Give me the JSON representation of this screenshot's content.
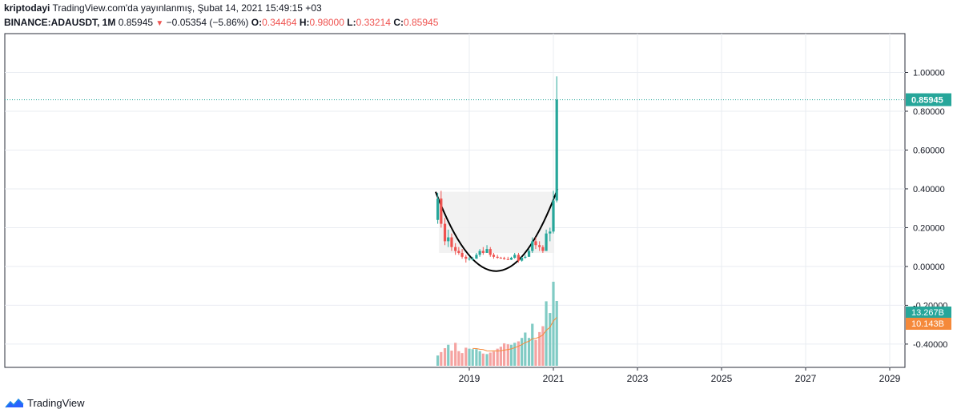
{
  "header": {
    "author": "kriptodayi",
    "published": "TradingView.com'da yayınlanmış, Şubat 14, 2021 15:49:15 +03",
    "symbol": "BINANCE:ADAUSDT, 1M",
    "last": "0.85945",
    "change": "−0.05354 (−5.86%)",
    "o_label": "O:",
    "o_value": "0.34464",
    "h_label": "H:",
    "h_value": "0.98000",
    "l_label": "L:",
    "l_value": "0.33214",
    "c_label": "C:",
    "c_value": "0.85945"
  },
  "footer": {
    "brand": "TradingView",
    "logo_icon": "tradingview-logo-icon"
  },
  "colors": {
    "up": "#26a69a",
    "down": "#ef5350",
    "price_line": "#26a69a",
    "volume_badge": "#26a69a",
    "vol_ma_badge": "#f5893a",
    "curve": "#000000"
  },
  "chart_data": {
    "type": "candlestick",
    "price_axis_labels": [
      "1.00000",
      "0.80000",
      "0.60000",
      "0.40000",
      "0.20000",
      "0.00000",
      "-0.20000",
      "-0.40000"
    ],
    "price_axis_values": [
      1.0,
      0.8,
      0.6,
      0.4,
      0.2,
      0.0,
      -0.2,
      -0.4
    ],
    "ylim": [
      -0.52,
      1.2
    ],
    "time_axis_labels": [
      "2019",
      "2021",
      "2023",
      "2025",
      "2027",
      "2029"
    ],
    "last_price_label": "0.85945",
    "volume_label": "13.267B",
    "volume_ma_label": "10.143B",
    "candles": [
      {
        "t": 2018.25,
        "o": 0.24,
        "h": 0.38,
        "l": 0.22,
        "c": 0.35
      },
      {
        "t": 2018.33,
        "o": 0.35,
        "h": 0.39,
        "l": 0.2,
        "c": 0.22
      },
      {
        "t": 2018.42,
        "o": 0.22,
        "h": 0.25,
        "l": 0.11,
        "c": 0.13
      },
      {
        "t": 2018.5,
        "o": 0.13,
        "h": 0.19,
        "l": 0.1,
        "c": 0.15
      },
      {
        "t": 2018.58,
        "o": 0.15,
        "h": 0.17,
        "l": 0.08,
        "c": 0.1
      },
      {
        "t": 2018.67,
        "o": 0.1,
        "h": 0.12,
        "l": 0.06,
        "c": 0.08
      },
      {
        "t": 2018.75,
        "o": 0.08,
        "h": 0.1,
        "l": 0.06,
        "c": 0.07
      },
      {
        "t": 2018.83,
        "o": 0.07,
        "h": 0.09,
        "l": 0.04,
        "c": 0.05
      },
      {
        "t": 2018.92,
        "o": 0.05,
        "h": 0.06,
        "l": 0.02,
        "c": 0.04
      },
      {
        "t": 2019.0,
        "o": 0.04,
        "h": 0.05,
        "l": 0.03,
        "c": 0.04
      },
      {
        "t": 2019.08,
        "o": 0.04,
        "h": 0.05,
        "l": 0.03,
        "c": 0.04
      },
      {
        "t": 2019.17,
        "o": 0.04,
        "h": 0.07,
        "l": 0.04,
        "c": 0.06
      },
      {
        "t": 2019.25,
        "o": 0.06,
        "h": 0.09,
        "l": 0.05,
        "c": 0.08
      },
      {
        "t": 2019.33,
        "o": 0.08,
        "h": 0.1,
        "l": 0.06,
        "c": 0.07
      },
      {
        "t": 2019.42,
        "o": 0.07,
        "h": 0.11,
        "l": 0.07,
        "c": 0.09
      },
      {
        "t": 2019.5,
        "o": 0.09,
        "h": 0.1,
        "l": 0.05,
        "c": 0.06
      },
      {
        "t": 2019.58,
        "o": 0.06,
        "h": 0.07,
        "l": 0.04,
        "c": 0.05
      },
      {
        "t": 2019.67,
        "o": 0.05,
        "h": 0.06,
        "l": 0.04,
        "c": 0.045
      },
      {
        "t": 2019.75,
        "o": 0.045,
        "h": 0.05,
        "l": 0.04,
        "c": 0.043
      },
      {
        "t": 2019.83,
        "o": 0.043,
        "h": 0.05,
        "l": 0.035,
        "c": 0.038
      },
      {
        "t": 2019.92,
        "o": 0.038,
        "h": 0.05,
        "l": 0.033,
        "c": 0.035
      },
      {
        "t": 2020.0,
        "o": 0.035,
        "h": 0.05,
        "l": 0.033,
        "c": 0.045
      },
      {
        "t": 2020.08,
        "o": 0.045,
        "h": 0.07,
        "l": 0.04,
        "c": 0.06
      },
      {
        "t": 2020.17,
        "o": 0.06,
        "h": 0.07,
        "l": 0.02,
        "c": 0.03
      },
      {
        "t": 2020.25,
        "o": 0.03,
        "h": 0.05,
        "l": 0.025,
        "c": 0.045
      },
      {
        "t": 2020.33,
        "o": 0.045,
        "h": 0.06,
        "l": 0.04,
        "c": 0.05
      },
      {
        "t": 2020.42,
        "o": 0.05,
        "h": 0.09,
        "l": 0.05,
        "c": 0.08
      },
      {
        "t": 2020.5,
        "o": 0.08,
        "h": 0.15,
        "l": 0.07,
        "c": 0.13
      },
      {
        "t": 2020.58,
        "o": 0.13,
        "h": 0.15,
        "l": 0.09,
        "c": 0.11
      },
      {
        "t": 2020.67,
        "o": 0.11,
        "h": 0.13,
        "l": 0.08,
        "c": 0.1
      },
      {
        "t": 2020.75,
        "o": 0.1,
        "h": 0.11,
        "l": 0.07,
        "c": 0.08
      },
      {
        "t": 2020.83,
        "o": 0.08,
        "h": 0.19,
        "l": 0.08,
        "c": 0.17
      },
      {
        "t": 2020.92,
        "o": 0.17,
        "h": 0.2,
        "l": 0.13,
        "c": 0.18
      },
      {
        "t": 2021.0,
        "o": 0.18,
        "h": 0.39,
        "l": 0.17,
        "c": 0.34
      },
      {
        "t": 2021.08,
        "o": 0.34,
        "h": 0.98,
        "l": 0.33,
        "c": 0.85945
      }
    ],
    "volume_scale": 13.267,
    "volumes": [
      2.1,
      2.8,
      3.6,
      4.3,
      3.1,
      4.7,
      3.0,
      2.6,
      3.7,
      3.5,
      3.4,
      3.4,
      3.0,
      2.5,
      2.4,
      2.7,
      2.9,
      3.5,
      3.9,
      4.6,
      4.4,
      4.3,
      4.7,
      5.0,
      5.7,
      6.8,
      5.7,
      8.6,
      5.3,
      6.9,
      8.1,
      13.2,
      10.8,
      17.2,
      13.267
    ],
    "volume_max": 17.2
  }
}
